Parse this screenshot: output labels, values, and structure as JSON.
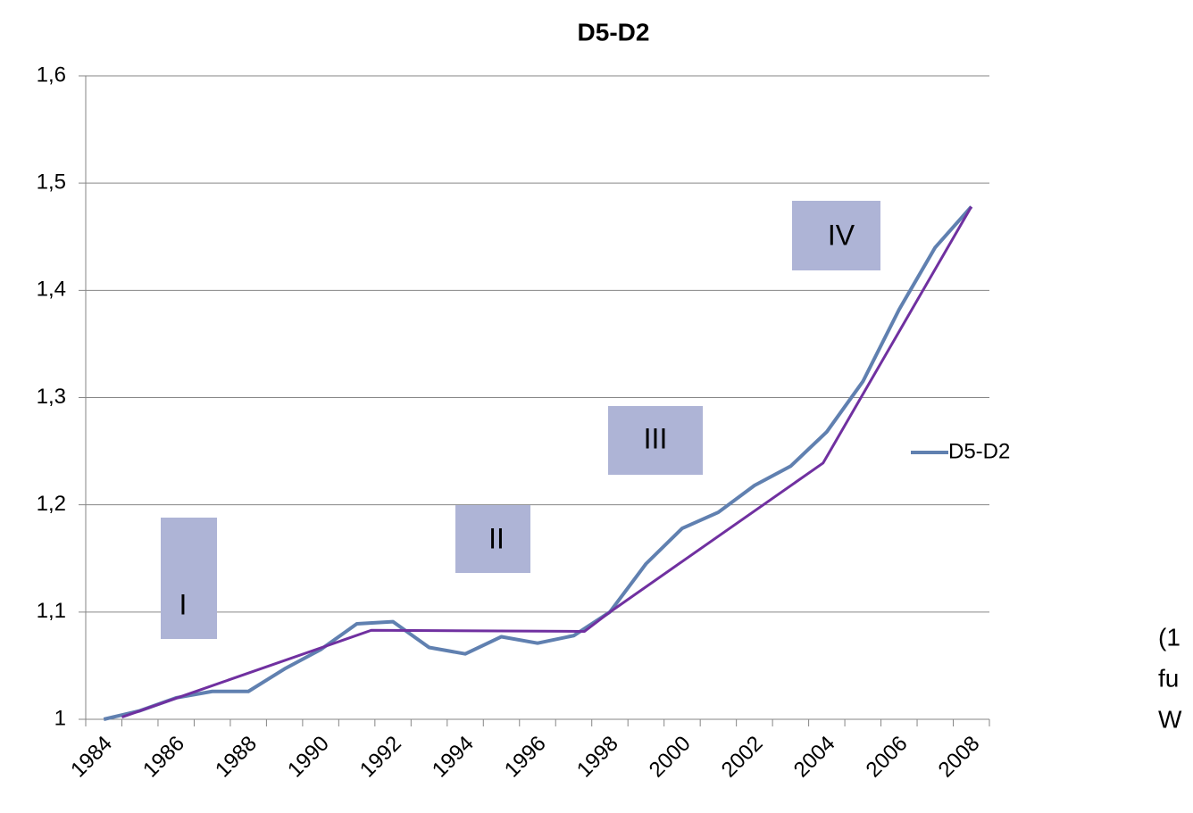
{
  "chart_data": {
    "type": "line",
    "title": "D5-D2",
    "categories": [
      "1984",
      null,
      "1986",
      null,
      "1988",
      null,
      "1990",
      null,
      "1992",
      null,
      "1994",
      null,
      "1996",
      null,
      "1998",
      null,
      "2000",
      null,
      "2002",
      null,
      "2004",
      null,
      "2006",
      null,
      "2008"
    ],
    "series": [
      {
        "name": "D5-D2",
        "color": "#6080b0",
        "values": [
          1.0,
          1.008,
          1.02,
          1.026,
          1.026,
          1.047,
          1.065,
          1.089,
          1.091,
          1.067,
          1.061,
          1.077,
          1.071,
          1.078,
          1.1,
          1.145,
          1.178,
          1.193,
          1.218,
          1.236,
          1.268,
          1.315,
          1.382,
          1.44,
          1.478
        ]
      }
    ],
    "trend": {
      "color": "#7030a0",
      "x": [
        1984.5,
        1991.4,
        1997.3,
        1998,
        2003.9,
        2008
      ],
      "y": [
        1.002,
        1.083,
        1.082,
        1.1,
        1.239,
        1.478
      ]
    },
    "ylim": [
      1,
      1.6
    ],
    "yticks": [
      1,
      {
        "value": 1.1,
        "label": "1,1"
      },
      {
        "value": 1.2,
        "label": "1,2"
      },
      {
        "value": 1.3,
        "label": "1,3"
      },
      {
        "value": 1.4,
        "label": "1,4"
      },
      {
        "value": 1.5,
        "label": "1,5"
      },
      {
        "value": 1.6,
        "label": "1,6"
      }
    ],
    "grid": true,
    "legend": "right",
    "annotations": [
      "I",
      "II",
      "III",
      "IV"
    ],
    "clipped_text": [
      "(1",
      "fu",
      "W"
    ]
  }
}
